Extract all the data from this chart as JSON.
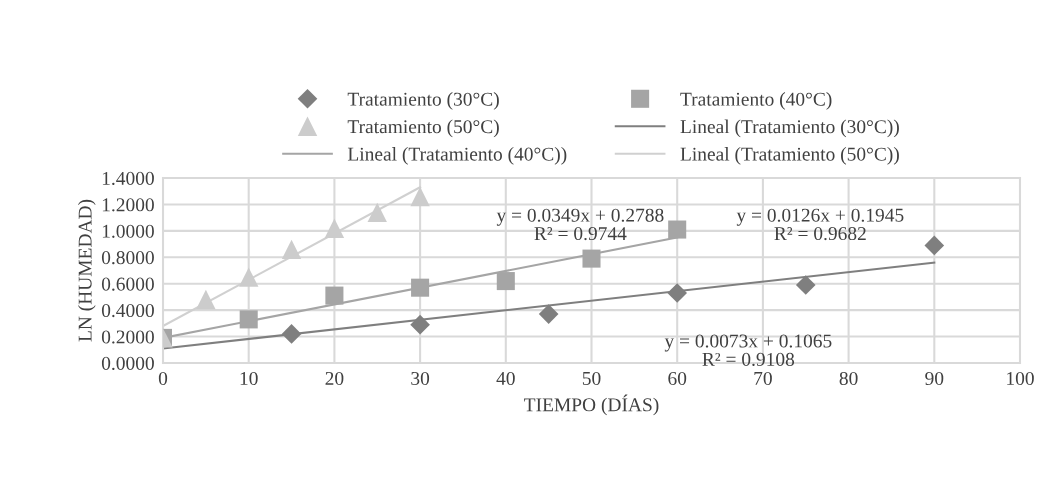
{
  "chart_data": {
    "type": "scatter",
    "xlabel": "TIEMPO (DÍAS)",
    "ylabel": "LN (HUMEDAD)",
    "xlim": [
      0,
      100
    ],
    "xticks": [
      0,
      10,
      20,
      30,
      40,
      50,
      60,
      70,
      80,
      90,
      100
    ],
    "ylim": [
      0,
      1.4
    ],
    "yticks": [
      {
        "value": 0,
        "label": "0.0000"
      },
      {
        "value": 0.2,
        "label": "0.2000"
      },
      {
        "value": 0.4,
        "label": "0.4000"
      },
      {
        "value": 0.6,
        "label": "0.6000"
      },
      {
        "value": 0.8,
        "label": "0.8000"
      },
      {
        "value": 1.0,
        "label": "1.0000"
      },
      {
        "value": 1.2,
        "label": "1.2000"
      },
      {
        "value": 1.4,
        "label": "1.4000"
      }
    ],
    "grid": true,
    "legend": "top",
    "series": [
      {
        "name": "Tratamiento (30°C)",
        "marker": "diamond",
        "color": "#7f7f7f",
        "x": [
          15,
          30,
          45,
          60,
          75,
          90
        ],
        "values": [
          0.22,
          0.29,
          0.37,
          0.53,
          0.59,
          0.89
        ]
      },
      {
        "name": "Tratamiento (40°C)",
        "marker": "square",
        "color": "#a5a5a5",
        "x": [
          0,
          10,
          20,
          30,
          40,
          50,
          60
        ],
        "values": [
          0.19,
          0.33,
          0.51,
          0.57,
          0.62,
          0.79,
          1.01
        ]
      },
      {
        "name": "Tratamiento (50°C)",
        "marker": "triangle",
        "color": "#cccccc",
        "x": [
          0,
          5,
          10,
          15,
          20,
          25,
          30
        ],
        "values": [
          0.19,
          0.48,
          0.65,
          0.86,
          1.02,
          1.14,
          1.26
        ]
      },
      {
        "name": "Lineal (Tratamiento (30°C))",
        "type": "line",
        "marker": "none",
        "color": "#7f7f7f",
        "x": [
          0,
          90
        ],
        "values": [
          0.11,
          0.76
        ]
      },
      {
        "name": "Lineal (Tratamiento (40°C))",
        "type": "line",
        "marker": "none",
        "color": "#a5a5a5",
        "x": [
          0,
          60
        ],
        "values": [
          0.19,
          0.95
        ]
      },
      {
        "name": "Lineal (Tratamiento (50°C))",
        "type": "line",
        "marker": "none",
        "color": "#d0d0d0",
        "x": [
          0,
          30
        ],
        "values": [
          0.28,
          1.33
        ]
      }
    ],
    "annotations": [
      "y = 0.0349x + 0.2788\nR² = 0.9744",
      "y = 0.0126x + 0.1945\nR² = 0.9682",
      "y = 0.0073x + 0.1065\nR² = 0.9108"
    ]
  }
}
